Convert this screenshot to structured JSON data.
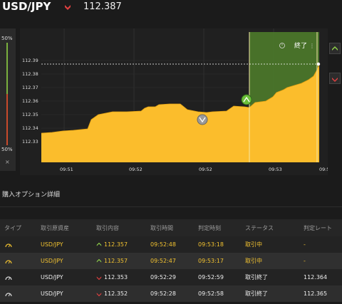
{
  "header": {
    "pair": "USD/JPY",
    "price": "112.387",
    "trend_icon": "down-arrow-icon",
    "trend_color": "#e04040"
  },
  "payout": {
    "top": "50%",
    "bottom": "50%",
    "close": "×"
  },
  "chart": {
    "y_ticks": [
      "112.39",
      "112.38",
      "112.37",
      "112.36",
      "112.35",
      "112.34",
      "112.33"
    ],
    "x_ticks": [
      "09:51",
      "09:52",
      "09:52",
      "09:53",
      "09:5"
    ],
    "end_label": "終了",
    "fill_color": "#fbbd2c",
    "profit_zone_color": "#4d7a2a",
    "current_price_line": "112.387"
  },
  "details": {
    "title": "購入オプション詳細",
    "columns": [
      "タイプ",
      "取引原資産",
      "取引内容",
      "取引時間",
      "判定時刻",
      "ステータス",
      "判定レート"
    ],
    "rows": [
      {
        "asset": "USD/JPY",
        "direction": "up",
        "entry": "112.357",
        "time": "09:52:48",
        "expiry": "09:53:18",
        "status": "取引中",
        "rate": "-"
      },
      {
        "asset": "USD/JPY",
        "direction": "up",
        "entry": "112.357",
        "time": "09:52:47",
        "expiry": "09:53:17",
        "status": "取引中",
        "rate": "-"
      },
      {
        "asset": "USD/JPY",
        "direction": "down",
        "entry": "112.353",
        "time": "09:52:29",
        "expiry": "09:52:59",
        "status": "取引終了",
        "rate": "112.364"
      },
      {
        "asset": "USD/JPY",
        "direction": "down",
        "entry": "112.352",
        "time": "09:52:28",
        "expiry": "09:52:58",
        "status": "取引終了",
        "rate": "112.365"
      }
    ]
  }
}
